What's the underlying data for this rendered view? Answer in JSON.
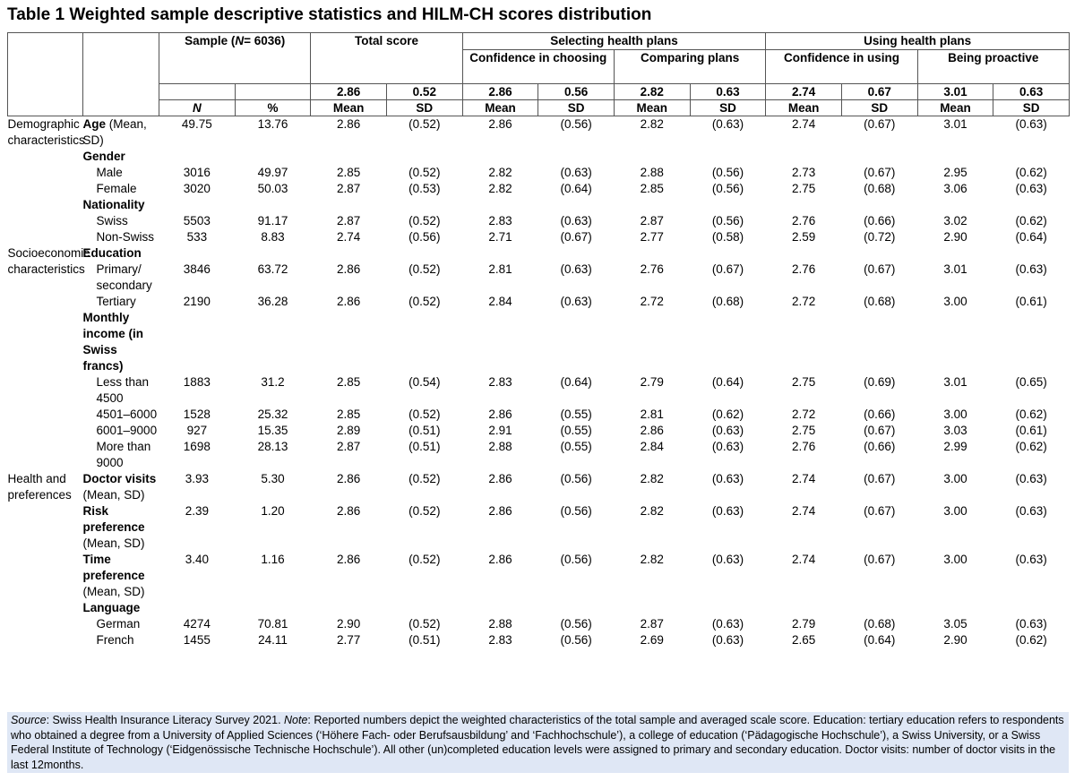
{
  "header": {
    "title": "Table 1 Weighted sample descriptive statistics and HILM-CH scores distribution"
  },
  "table": {
    "sample_prefix": "Sample (",
    "sample_n": "N",
    "sample_suffix": "= 6036)",
    "total": "Total score",
    "selecting": "Selecting health plans",
    "using": "Using health plans",
    "subscales": [
      "Confidence in choosing",
      "Comparing plans",
      "Confidence in using",
      "Being proactive"
    ],
    "overall": [
      "2.86",
      "0.52",
      "2.86",
      "0.56",
      "2.82",
      "0.63",
      "2.74",
      "0.67",
      "3.01",
      "0.63"
    ],
    "column_labels": [
      "N",
      "%",
      "Mean",
      "SD",
      "Mean",
      "SD",
      "Mean",
      "SD",
      "Mean",
      "SD",
      "Mean",
      "SD"
    ],
    "rows": [
      {
        "group": "Demographic characteristics",
        "heading": "Age",
        "label": "(Mean, SD)",
        "values": [
          "49.75",
          "13.76",
          "2.86",
          "(0.52)",
          "2.86",
          "(0.56)",
          "2.82",
          "(0.63)",
          "2.74",
          "(0.67)",
          "3.01",
          "(0.63)"
        ]
      },
      {
        "heading": "Gender"
      },
      {
        "label": "Male",
        "values": [
          "3016",
          "49.97",
          "2.85",
          "(0.52)",
          "2.82",
          "(0.63)",
          "2.88",
          "(0.56)",
          "2.73",
          "(0.67)",
          "2.95",
          "(0.62)"
        ]
      },
      {
        "label": "Female",
        "values": [
          "3020",
          "50.03",
          "2.87",
          "(0.53)",
          "2.82",
          "(0.64)",
          "2.85",
          "(0.56)",
          "2.75",
          "(0.68)",
          "3.06",
          "(0.63)"
        ]
      },
      {
        "heading": "Nationality"
      },
      {
        "label": "Swiss",
        "values": [
          "5503",
          "91.17",
          "2.87",
          "(0.52)",
          "2.83",
          "(0.63)",
          "2.87",
          "(0.56)",
          "2.76",
          "(0.66)",
          "3.02",
          "(0.62)"
        ]
      },
      {
        "label": "Non-Swiss",
        "values": [
          "533",
          "8.83",
          "2.74",
          "(0.56)",
          "2.71",
          "(0.67)",
          "2.77",
          "(0.58)",
          "2.59",
          "(0.72)",
          "2.90",
          "(0.64)"
        ]
      },
      {
        "group": "Socioeconomic characteristics",
        "heading": "Education"
      },
      {
        "label": "Primary/ secondary",
        "values": [
          "3846",
          "63.72",
          "2.86",
          "(0.52)",
          "2.81",
          "(0.63)",
          "2.76",
          "(0.67)",
          "2.76",
          "(0.67)",
          "3.01",
          "(0.63)"
        ]
      },
      {
        "label": "Tertiary",
        "values": [
          "2190",
          "36.28",
          "2.86",
          "(0.52)",
          "2.84",
          "(0.63)",
          "2.72",
          "(0.68)",
          "2.72",
          "(0.68)",
          "3.00",
          "(0.61)"
        ]
      },
      {
        "heading": "Monthly income (in Swiss francs)"
      },
      {
        "label": "Less than 4500",
        "values": [
          "1883",
          "31.2",
          "2.85",
          "(0.54)",
          "2.83",
          "(0.64)",
          "2.79",
          "(0.64)",
          "2.75",
          "(0.69)",
          "3.01",
          "(0.65)"
        ]
      },
      {
        "label": "4501–6000",
        "values": [
          "1528",
          "25.32",
          "2.85",
          "(0.52)",
          "2.86",
          "(0.55)",
          "2.81",
          "(0.62)",
          "2.72",
          "(0.66)",
          "3.00",
          "(0.62)"
        ]
      },
      {
        "label": "6001–9000",
        "values": [
          "927",
          "15.35",
          "2.89",
          "(0.51)",
          "2.91",
          "(0.55)",
          "2.86",
          "(0.63)",
          "2.75",
          "(0.67)",
          "3.03",
          "(0.61)"
        ]
      },
      {
        "label": "More than 9000",
        "values": [
          "1698",
          "28.13",
          "2.87",
          "(0.51)",
          "2.88",
          "(0.55)",
          "2.84",
          "(0.63)",
          "2.76",
          "(0.66)",
          "2.99",
          "(0.62)"
        ]
      },
      {
        "group": "Health and preferences",
        "heading": "Doctor visits",
        "label": "(Mean, SD)",
        "values": [
          "3.93",
          "5.30",
          "2.86",
          "(0.52)",
          "2.86",
          "(0.56)",
          "2.82",
          "(0.63)",
          "2.74",
          "(0.67)",
          "3.00",
          "(0.63)"
        ]
      },
      {
        "heading": "Risk preference",
        "label": "(Mean, SD)",
        "values": [
          "2.39",
          "1.20",
          "2.86",
          "(0.52)",
          "2.86",
          "(0.56)",
          "2.82",
          "(0.63)",
          "2.74",
          "(0.67)",
          "3.00",
          "(0.63)"
        ]
      },
      {
        "heading": "Time preference",
        "label": "(Mean, SD)",
        "values": [
          "3.40",
          "1.16",
          "2.86",
          "(0.52)",
          "2.86",
          "(0.56)",
          "2.82",
          "(0.63)",
          "2.74",
          "(0.67)",
          "3.00",
          "(0.63)"
        ]
      },
      {
        "heading": "Language"
      },
      {
        "label": "German",
        "values": [
          "4274",
          "70.81",
          "2.90",
          "(0.52)",
          "2.88",
          "(0.56)",
          "2.87",
          "(0.63)",
          "2.79",
          "(0.68)",
          "3.05",
          "(0.63)"
        ]
      },
      {
        "label": "French",
        "values": [
          "1455",
          "24.11",
          "2.77",
          "(0.51)",
          "2.83",
          "(0.56)",
          "2.69",
          "(0.63)",
          "2.65",
          "(0.64)",
          "2.90",
          "(0.62)"
        ]
      }
    ]
  },
  "note": {
    "source_label": "Source",
    "source": ": Swiss Health Insurance Literacy Survey 2021. ",
    "note_label": "Note",
    "text": ": Reported numbers depict the weighted characteristics of the total sample and averaged scale score. Education: tertiary education refers to respondents who obtained a degree from a University of Applied Sciences (‘Höhere Fach- oder Berufsausbildung’ and ‘Fachhochschule’), a college of education (‘Pädagogische Hochschule’), a Swiss University, or a Swiss Federal Institute of Technology (‘Eidgenössische Technische Hochschule’). All other (un)completed education levels were assigned to primary and secondary education. Doctor visits: number of doctor visits in the last 12months."
  }
}
